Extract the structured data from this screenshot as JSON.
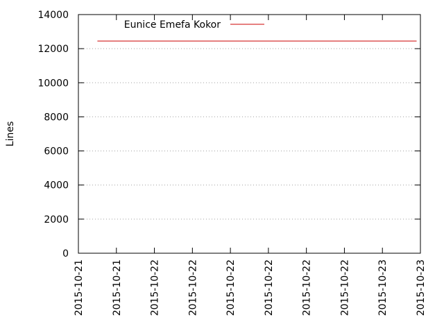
{
  "chart_data": {
    "type": "line",
    "title": "",
    "xlabel": "",
    "ylabel": "Lines",
    "ylim": [
      0,
      14000
    ],
    "yticks": [
      0,
      2000,
      4000,
      6000,
      8000,
      10000,
      12000,
      14000
    ],
    "xticks": [
      "2015-10-21",
      "2015-10-21",
      "2015-10-22",
      "2015-10-22",
      "2015-10-22",
      "2015-10-22",
      "2015-10-22",
      "2015-10-22",
      "2015-10-23",
      "2015-10-23"
    ],
    "grid": {
      "horizontal": true,
      "vertical": false
    },
    "legend": {
      "placement": "top-left"
    },
    "series": [
      {
        "name": "Eunice Emefa Kokor",
        "color": "#cc0000",
        "x_tick_range": [
          0.5,
          8.9
        ],
        "values": [
          12450,
          12450
        ]
      }
    ]
  }
}
